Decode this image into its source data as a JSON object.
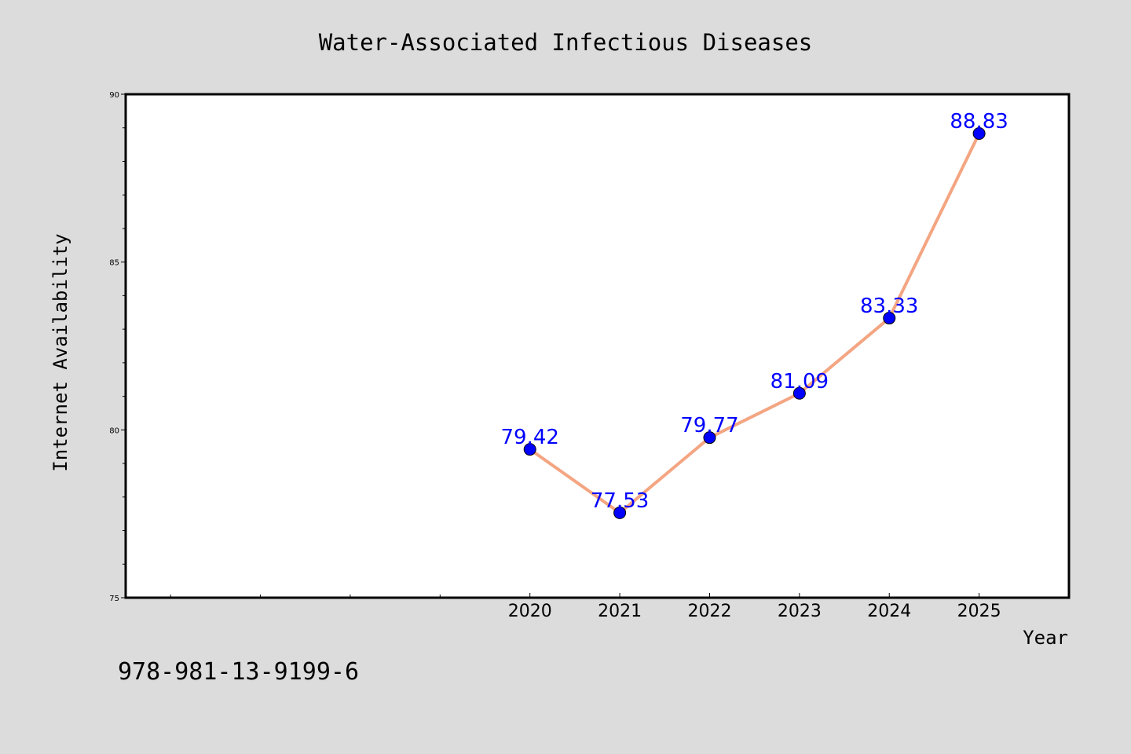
{
  "chart_data": {
    "type": "line",
    "title": "Water-Associated Infectious Diseases",
    "xlabel": "Year",
    "ylabel": "Internet Availability",
    "x": [
      2020,
      2021,
      2022,
      2023,
      2024,
      2025
    ],
    "xlim": [
      2015.5,
      2026
    ],
    "ylim": [
      75,
      90
    ],
    "y_major_ticks": [
      75,
      80,
      85,
      90
    ],
    "y_minor_ticks": [
      76,
      77,
      78,
      79,
      81,
      82,
      83,
      84,
      86,
      87,
      88,
      89
    ],
    "x_labeled_ticks": [
      2020,
      2021,
      2022,
      2023,
      2024,
      2025
    ],
    "x_unlabeled_ticks": [
      2016,
      2017,
      2018,
      2019
    ],
    "grid": false,
    "series": [
      {
        "values": [
          79.42,
          77.53,
          79.77,
          81.09,
          83.33,
          88.83
        ],
        "data_labels": [
          "79.42",
          "77.53",
          "79.77",
          "81.09",
          "83.33",
          "88.83"
        ],
        "line_color": "#f4a582",
        "marker_color": "#0000ff",
        "label_color": "#0000ff"
      }
    ]
  },
  "footer_text": "978-981-13-9199-6",
  "colors": {
    "background": "#dcdcdc",
    "plot_background": "#ffffff",
    "axis": "#000000"
  }
}
